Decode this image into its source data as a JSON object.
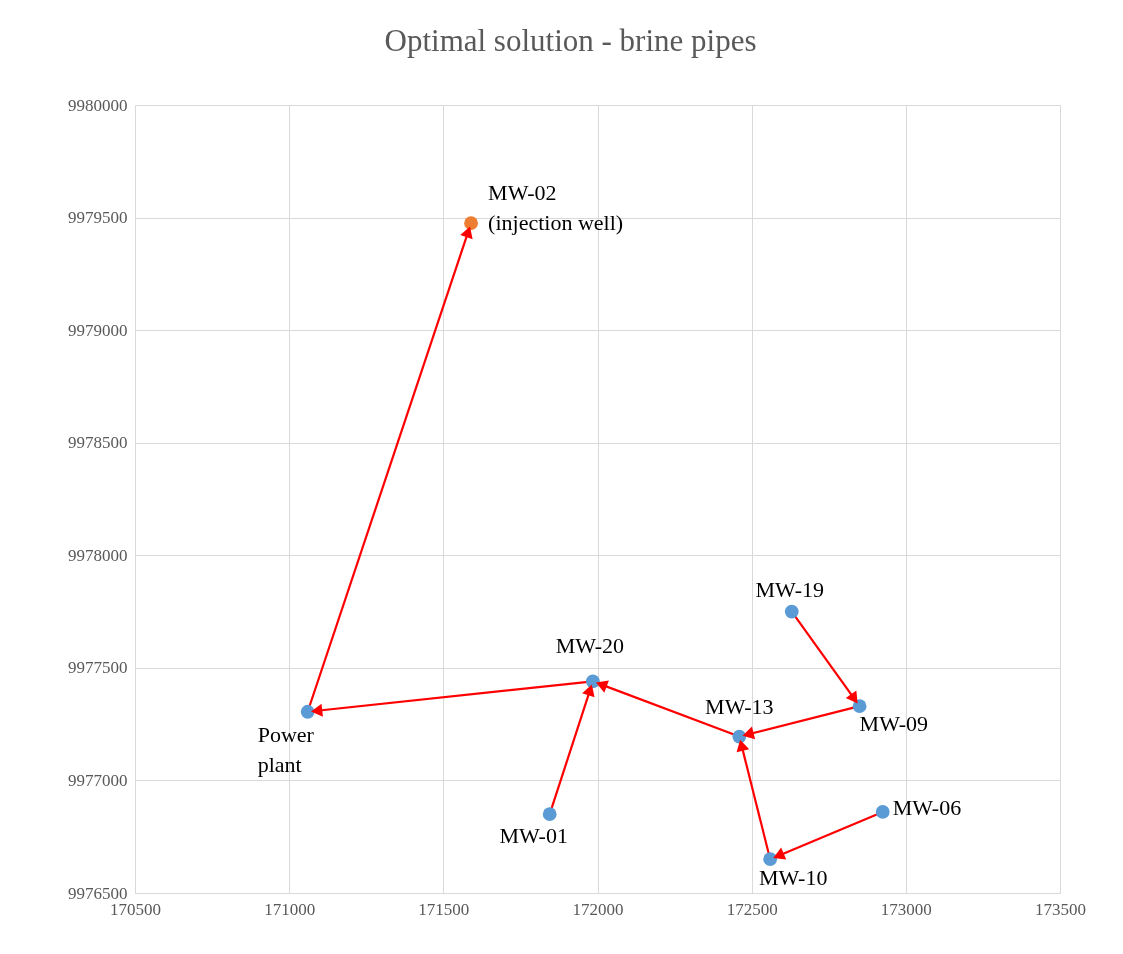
{
  "chart_data": {
    "type": "scatter",
    "title": "Optimal solution - brine pipes",
    "xlim": [
      170500,
      173500
    ],
    "xticks": [
      170500,
      171000,
      171500,
      172000,
      172500,
      173000,
      173500
    ],
    "ylim": [
      9976500,
      9980000
    ],
    "yticks": [
      9976500,
      9977000,
      9977500,
      9978000,
      9978500,
      9979000,
      9979500,
      9980000
    ],
    "grid": true,
    "series": [
      {
        "type": "line",
        "color": "#ff0000",
        "x": [
          172630,
          172850
        ],
        "values": [
          9977750,
          9977330
        ]
      },
      {
        "type": "line",
        "color": "#ff0000",
        "x": [
          172850,
          172460
        ],
        "values": [
          9977330,
          9977195
        ]
      },
      {
        "type": "line",
        "color": "#ff0000",
        "x": [
          172925,
          172560
        ],
        "values": [
          9976860,
          9976650
        ]
      },
      {
        "type": "line",
        "color": "#ff0000",
        "x": [
          172560,
          172460
        ],
        "values": [
          9976650,
          9977195
        ]
      },
      {
        "type": "line",
        "color": "#ff0000",
        "x": [
          172460,
          171985
        ],
        "values": [
          9977195,
          9977440
        ]
      },
      {
        "type": "line",
        "color": "#ff0000",
        "x": [
          171845,
          171985
        ],
        "values": [
          9976850,
          9977440
        ]
      },
      {
        "type": "line",
        "color": "#ff0000",
        "x": [
          171985,
          171060
        ],
        "values": [
          9977440,
          9977305
        ]
      },
      {
        "type": "line",
        "color": "#ff0000",
        "x": [
          171060,
          171590
        ],
        "values": [
          9977305,
          9979475
        ]
      },
      {
        "marker": "circle",
        "color": "#5b9bd5",
        "x": [
          171060,
          171985,
          171845,
          172460,
          172850,
          172630,
          172925,
          172560
        ],
        "values": [
          9977305,
          9977440,
          9976850,
          9977195,
          9977330,
          9977750,
          9976860,
          9976650
        ]
      },
      {
        "marker": "circle",
        "color": "#ed7d31",
        "x": [
          171590
        ],
        "values": [
          9979475
        ]
      }
    ],
    "annotations": [
      {
        "text": "Power\nplant",
        "x": 171060,
        "y": 9977305
      },
      {
        "text": "MW-02\n(injection well)",
        "x": 171590,
        "y": 9979475
      },
      {
        "text": "MW-20",
        "x": 171985,
        "y": 9977440
      },
      {
        "text": "MW-19",
        "x": 172630,
        "y": 9977750
      },
      {
        "text": "MW-13",
        "x": 172460,
        "y": 9977195
      },
      {
        "text": "MW-09",
        "x": 172850,
        "y": 9977330
      },
      {
        "text": "MW-06",
        "x": 172925,
        "y": 9976860
      },
      {
        "text": "MW-10",
        "x": 172560,
        "y": 9976650
      },
      {
        "text": "MW-01",
        "x": 171845,
        "y": 9976850
      }
    ]
  }
}
